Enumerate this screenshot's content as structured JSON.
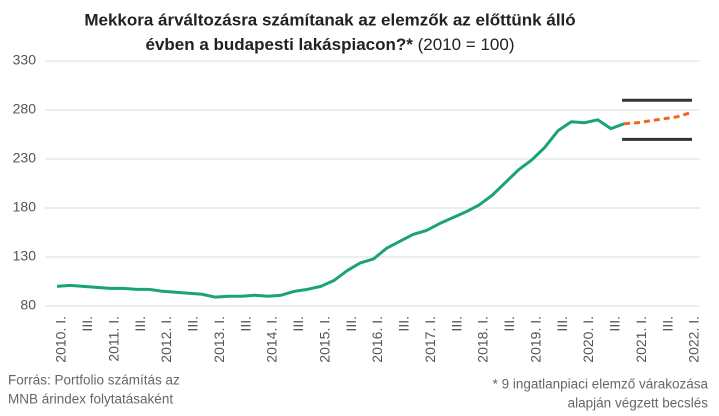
{
  "chart_data": {
    "type": "line",
    "title": [
      "Mekkora árváltozásra számítanak az elemzők az előttünk álló",
      "évben a budapesti lakáspiacon?*"
    ],
    "title_note": "(2010 = 100)",
    "categories": [
      "2010. I.",
      null,
      "III.",
      null,
      "2011. I.",
      null,
      "III.",
      null,
      "2012. I.",
      null,
      "III.",
      null,
      "2013. I.",
      null,
      "III.",
      null,
      "2014. I.",
      null,
      "III.",
      null,
      "2015. I.",
      null,
      "III.",
      null,
      "2016. I.",
      null,
      "III.",
      null,
      "2017. I.",
      null,
      "III.",
      null,
      "2018. I.",
      null,
      "III.",
      null,
      "2019. I.",
      null,
      "III.",
      null,
      "2020. I.",
      null,
      "III.",
      null,
      "2021. I.",
      null,
      "III.",
      null,
      "2022. I."
    ],
    "series": [
      {
        "color": "#1aa37a",
        "dashed": false,
        "values": [
          100,
          101,
          100,
          99,
          98,
          98,
          97,
          97,
          95,
          94,
          93,
          92,
          89,
          90,
          90,
          91,
          90,
          91,
          95,
          97,
          100,
          106,
          116,
          124,
          128,
          139,
          146,
          153,
          157,
          164,
          170,
          176,
          183,
          193,
          206,
          219,
          229,
          242,
          259,
          268,
          267,
          270,
          261,
          266,
          null,
          null,
          null,
          null,
          null
        ]
      },
      {
        "color": "#f26522",
        "dashed": true,
        "values": [
          null,
          null,
          null,
          null,
          null,
          null,
          null,
          null,
          null,
          null,
          null,
          null,
          null,
          null,
          null,
          null,
          null,
          null,
          null,
          null,
          null,
          null,
          null,
          null,
          null,
          null,
          null,
          null,
          null,
          null,
          null,
          null,
          null,
          null,
          null,
          null,
          null,
          null,
          null,
          null,
          null,
          null,
          null,
          266,
          267,
          269,
          271,
          273,
          277
        ]
      }
    ],
    "forecast_range": {
      "values": [
        250,
        290
      ],
      "from": 43,
      "to": 48,
      "color": "#333"
    },
    "ylim": [
      80,
      330
    ],
    "yticks": [
      80,
      130,
      180,
      230,
      280,
      330
    ],
    "grid": true,
    "source": [
      "Forrás: Portfolio számítás az",
      "MNB árindex folytatásaként"
    ],
    "footnote": [
      "* 9 ingatlanpiaci elemző várakozása",
      "alapján végzett becslés"
    ]
  }
}
